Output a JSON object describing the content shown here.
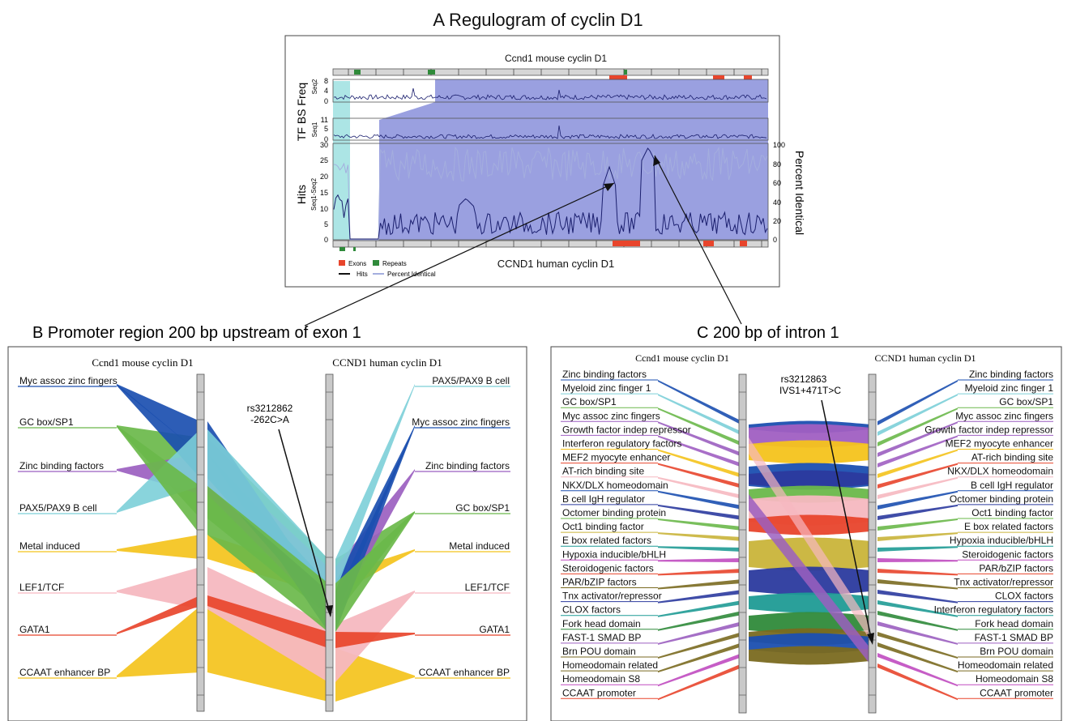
{
  "panelA": {
    "title": "A   Regulogram of cyclin D1",
    "top_label": "Ccnd1 mouse cyclin D1",
    "bottom_label": "CCND1 human cyclin D1",
    "tf_label": "TF BS Freq",
    "seq2_sub": "Seq2",
    "seq1_sub": "Seq1",
    "hits_label": "Hits",
    "hits_sub": "Seq1-Seq2",
    "percent_label": "Percent Identical",
    "seq2_ticks": [
      "8",
      "4",
      "0"
    ],
    "seq1_ticks": [
      "11",
      "5",
      "0"
    ],
    "hits_ticks": [
      "30",
      "25",
      "20",
      "15",
      "10",
      "5",
      "0"
    ],
    "pct_ticks": [
      "100",
      "80",
      "60",
      "40",
      "20",
      "0"
    ],
    "legend": {
      "exons": "Exons",
      "repeats": "Repeats",
      "hits": "Hits",
      "percent": "Percent Identical"
    },
    "colors": {
      "exon": "#e8452c",
      "repeat": "#2f8a3a",
      "shade": "#8f96dd",
      "cyan": "#9ee0e0",
      "hits": "#1b1f6e",
      "percent": "#a4aede"
    }
  },
  "panelB": {
    "title": "B   Promoter region 200 bp upstream of exon 1",
    "mouse_header": "Ccnd1 mouse cyclin D1",
    "human_header": "CCND1 human cyclin D1",
    "snp_name": "rs3212862",
    "snp_change": "-262C>A",
    "left": [
      "Myc assoc zinc fingers",
      "GC box/SP1",
      "Zinc binding factors",
      "PAX5/PAX9 B cell",
      "Metal induced",
      "LEF1/TCF",
      "GATA1",
      "CCAAT enhancer BP"
    ],
    "right": [
      "PAX5/PAX9 B cell",
      "Myc assoc zinc fingers",
      "Zinc binding factors",
      "GC box/SP1",
      "Metal induced",
      "LEF1/TCF",
      "GATA1",
      "CCAAT enhancer BP"
    ]
  },
  "panelC": {
    "title": "C   200 bp of intron 1",
    "mouse_header": "Ccnd1 mouse cyclin D1",
    "human_header": "CCND1 human cyclin D1",
    "snp_name": "rs3212863",
    "snp_change": "IVS1+471T>C",
    "left": [
      "Zinc binding factors",
      "Myeloid zinc finger 1",
      "GC box/SP1",
      "Myc assoc zinc fingers",
      "Growth factor indep repressor",
      "Interferon regulatory factors",
      "MEF2 myocyte enhancer",
      "AT-rich binding site",
      "NKX/DLX homeodomain",
      "B cell IgH regulator",
      "Octomer binding protein",
      "Oct1 binding factor",
      "E box related factors",
      "Hypoxia inducible/bHLH",
      "Steroidogenic factors",
      "PAR/bZIP factors",
      "Tnx activator/repressor",
      "CLOX factors",
      "Fork head domain",
      "FAST-1 SMAD BP",
      "Brn POU domain",
      "Homeodomain related",
      "Homeodomain S8",
      "CCAAT promoter"
    ],
    "right": [
      "Zinc binding factors",
      "Myeloid zinc finger 1",
      "GC box/SP1",
      "Myc assoc zinc fingers",
      "Growth factor indep repressor",
      "MEF2 myocyte enhancer",
      "AT-rich binding site",
      "NKX/DLX homeodomain",
      "B cell IgH regulator",
      "Octomer binding protein",
      "Oct1 binding factor",
      "E box related factors",
      "Hypoxia inducible/bHLH",
      "Steroidogenic factors",
      "PAR/bZIP factors",
      "Tnx activator/repressor",
      "CLOX factors",
      "Interferon regulatory factors",
      "Fork head domain",
      "FAST-1 SMAD BP",
      "Brn POU domain",
      "Homeodomain related",
      "Homeodomain S8",
      "CCAAT promoter"
    ]
  },
  "palette": [
    "#1b4fb0",
    "#7ccfd8",
    "#6ab84a",
    "#9b5fc0",
    "#a05fc2",
    "#f4c31c",
    "#e8452c",
    "#f6b8c0",
    "#c9b43a",
    "#2b3a9e",
    "#1f9b95",
    "#2f8a3a",
    "#7a6a20",
    "#c04bc0"
  ]
}
